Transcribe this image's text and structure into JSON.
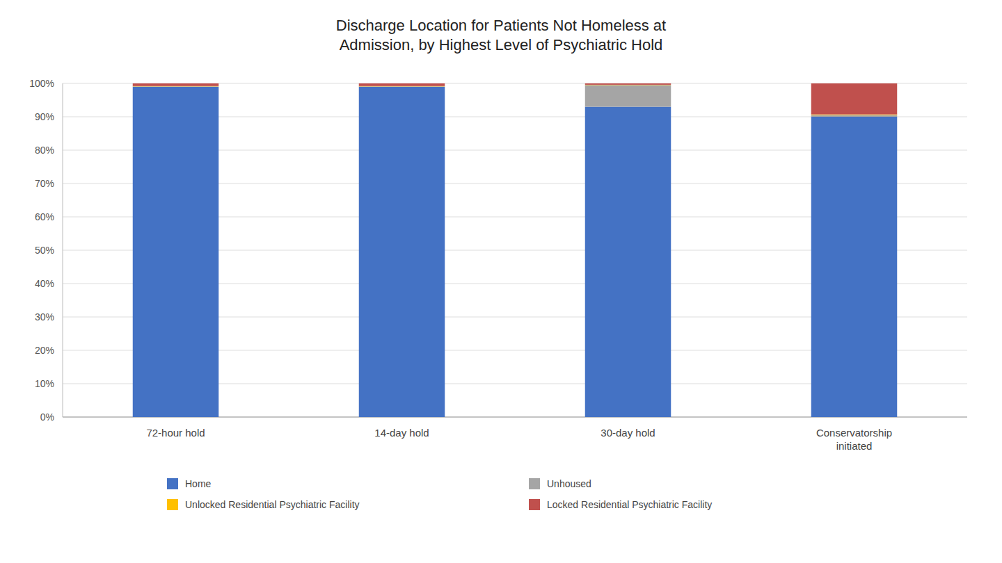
{
  "chart_data": {
    "type": "bar",
    "stacked": true,
    "title": "Discharge Location for Patients Not Homeless at\nAdmission, by Highest Level of Psychiatric Hold",
    "categories": [
      "72-hour hold",
      "14-day hold",
      "30-day hold",
      "Conservatorship\ninitiated"
    ],
    "series": [
      {
        "name": "Home",
        "color": "#4472C4",
        "values": [
          0.99,
          0.99,
          0.93,
          0.9
        ]
      },
      {
        "name": "Unhoused",
        "color": "#A5A5A5",
        "values": [
          0.001,
          0.001,
          0.065,
          0.005
        ]
      },
      {
        "name": "Unlocked Residential Psychiatric Facility",
        "color": "#FFC000",
        "values": [
          0.001,
          0.001,
          0.001,
          0.002
        ]
      },
      {
        "name": "Locked Residential Psychiatric Facility",
        "color": "#C0504D",
        "values": [
          0.008,
          0.008,
          0.004,
          0.093
        ]
      }
    ],
    "ylim": [
      0,
      1.0
    ],
    "yticks": [
      {
        "value": 0,
        "label": "0%"
      },
      {
        "value": 0.1,
        "label": "10%"
      },
      {
        "value": 0.2,
        "label": "20%"
      },
      {
        "value": 0.3,
        "label": "30%"
      },
      {
        "value": 0.4,
        "label": "40%"
      },
      {
        "value": 0.5,
        "label": "50%"
      },
      {
        "value": 0.6,
        "label": "60%"
      },
      {
        "value": 0.7,
        "label": "70%"
      },
      {
        "value": 0.8,
        "label": "80%"
      },
      {
        "value": 0.9,
        "label": "90%"
      },
      {
        "value": 1.0,
        "label": "100%"
      }
    ],
    "grid": true,
    "legend": "bottom"
  }
}
